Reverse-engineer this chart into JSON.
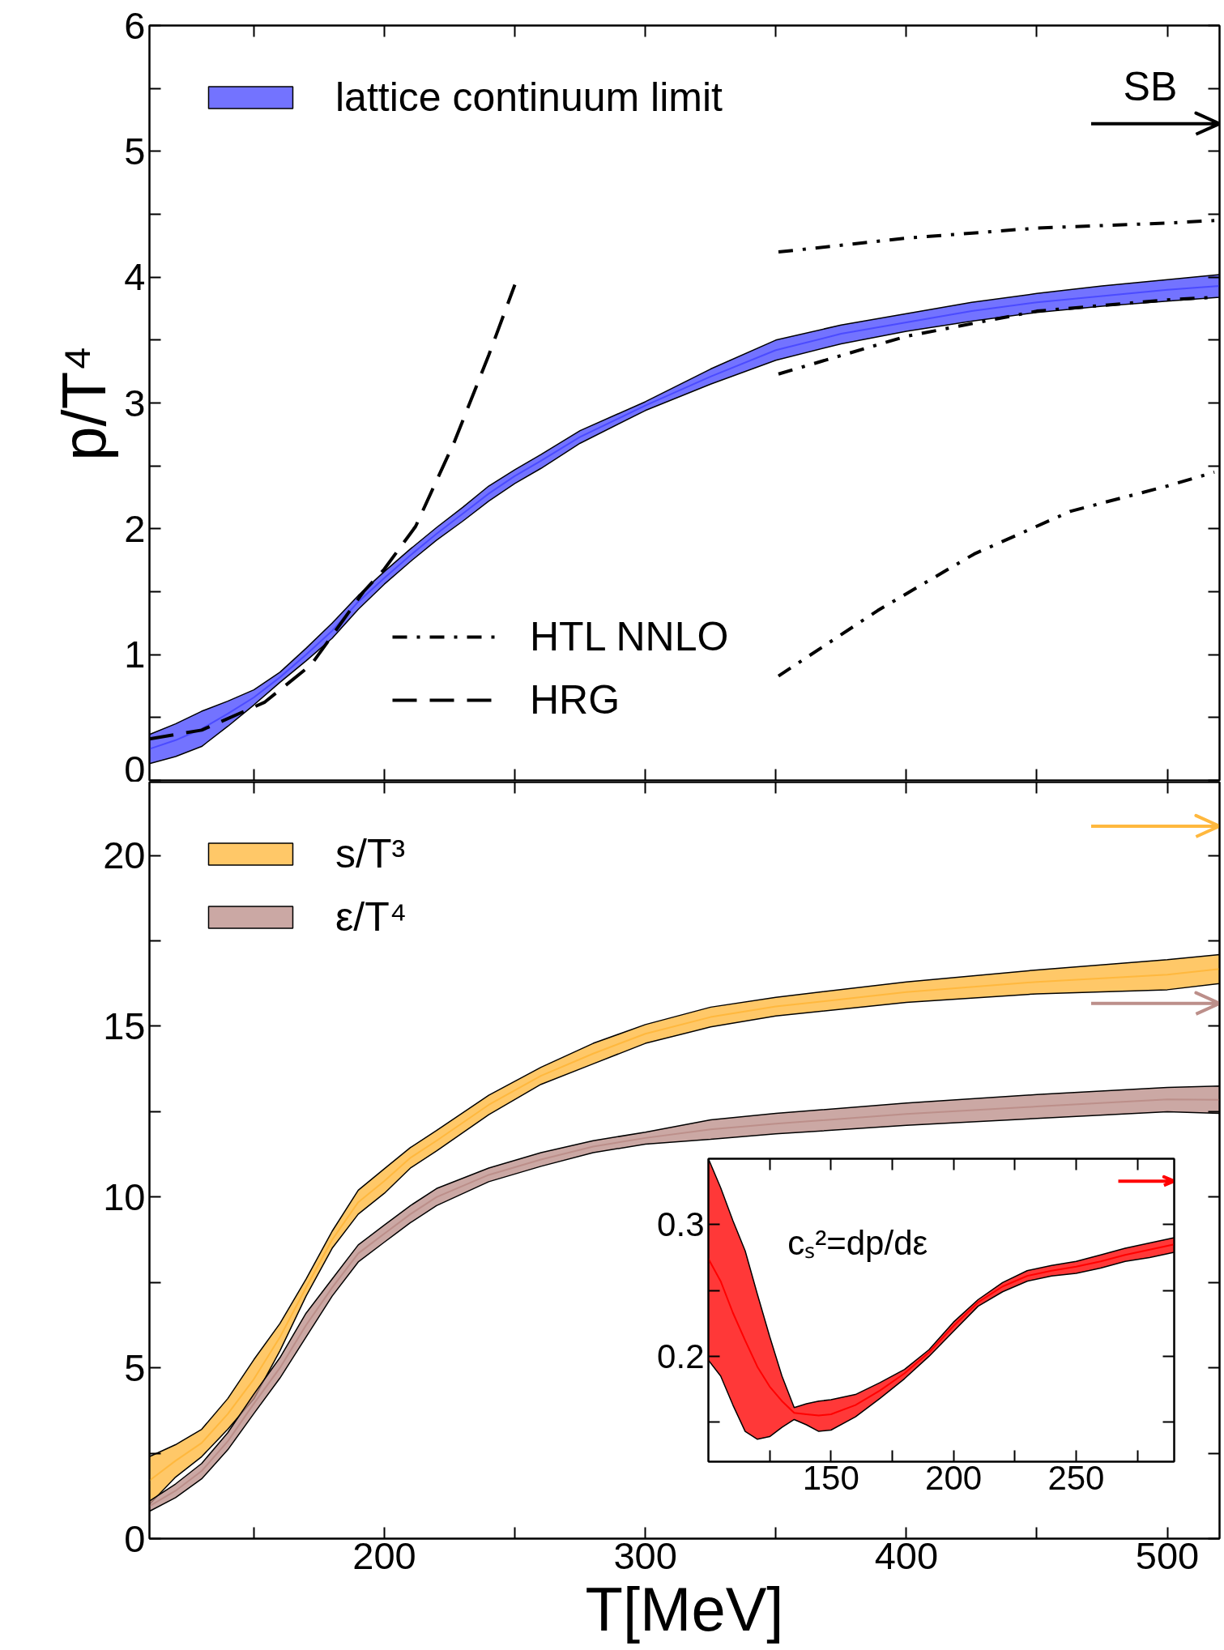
{
  "chart_data": [
    {
      "type": "line",
      "ylabel": "p/T⁴",
      "xlim": [
        110,
        520
      ],
      "ylim": [
        0,
        6
      ],
      "xticks": [
        {
          "value": 150,
          "label": null
        },
        200,
        {
          "value": 250,
          "label": null
        },
        300,
        {
          "value": 350,
          "label": null
        },
        400,
        {
          "value": 450,
          "label": null
        },
        500
      ],
      "yticks": [
        0,
        {
          "value": 0.5,
          "label": null
        },
        1,
        {
          "value": 1.5,
          "label": null
        },
        2,
        {
          "value": 2.5,
          "label": null
        },
        3,
        {
          "value": 3.5,
          "label": null
        },
        4,
        {
          "value": 4.5,
          "label": null
        },
        5,
        {
          "value": 5.5,
          "label": null
        },
        6
      ],
      "tick_labels": "y",
      "grid": false,
      "legend": "top left",
      "ref_lines": [
        {
          "axis": "y",
          "value": 5.22,
          "label": "SB",
          "color": "#000000"
        }
      ],
      "series": [
        {
          "name": "lattice continuum limit",
          "color": "#4b4bff",
          "x": [
            110,
            120,
            130,
            140,
            150,
            160,
            170,
            180,
            190,
            200,
            210,
            220,
            230,
            240,
            250,
            260,
            275,
            300,
            325,
            350,
            375,
            400,
            425,
            450,
            475,
            500,
            520
          ],
          "values": [
            0.25,
            0.32,
            0.41,
            0.53,
            0.66,
            0.82,
            1.0,
            1.19,
            1.42,
            1.61,
            1.79,
            1.96,
            2.12,
            2.28,
            2.42,
            2.54,
            2.73,
            2.98,
            3.21,
            3.42,
            3.55,
            3.64,
            3.73,
            3.8,
            3.85,
            3.9,
            3.93
          ],
          "lower": [
            0.133,
            0.19,
            0.27,
            0.43,
            0.6,
            0.78,
            0.95,
            1.13,
            1.36,
            1.56,
            1.74,
            1.91,
            2.06,
            2.22,
            2.36,
            2.48,
            2.68,
            2.94,
            3.15,
            3.34,
            3.47,
            3.57,
            3.65,
            3.72,
            3.77,
            3.81,
            3.84
          ],
          "upper": [
            0.365,
            0.45,
            0.55,
            0.63,
            0.72,
            0.86,
            1.05,
            1.25,
            1.47,
            1.66,
            1.84,
            2.01,
            2.17,
            2.34,
            2.47,
            2.59,
            2.78,
            3.01,
            3.27,
            3.5,
            3.62,
            3.71,
            3.8,
            3.87,
            3.93,
            3.98,
            4.02
          ]
        },
        {
          "name": "HTL NNLO",
          "line_style": "dashdot",
          "color": "#000000",
          "x": [
            351,
            400,
            450,
            500,
            518
          ],
          "values": [
            4.2,
            4.31,
            4.39,
            4.43,
            4.45
          ]
        },
        {
          "line_style": "dashdot",
          "color": "#000000",
          "x": [
            351,
            400,
            450,
            500,
            518
          ],
          "values": [
            3.23,
            3.53,
            3.73,
            3.82,
            3.84
          ]
        },
        {
          "line_style": "dashdot",
          "color": "#000000",
          "x": [
            351,
            389,
            426,
            463,
            500,
            518
          ],
          "values": [
            0.83,
            1.35,
            1.8,
            2.14,
            2.34,
            2.45
          ]
        },
        {
          "name": "HRG",
          "line_style": "dashed",
          "color": "#000000",
          "x": [
            110,
            130,
            154,
            172,
            192,
            200,
            212,
            227,
            240,
            250
          ],
          "values": [
            0.33,
            0.4,
            0.62,
            0.92,
            1.5,
            1.68,
            2.02,
            2.7,
            3.38,
            3.94
          ]
        }
      ]
    },
    {
      "type": "line",
      "xlabel": "T[MeV]",
      "xlim": [
        110,
        520
      ],
      "ylim": [
        0,
        22.15
      ],
      "xticks": [
        {
          "value": 150,
          "label": null
        },
        200,
        {
          "value": 250,
          "label": null
        },
        300,
        {
          "value": 350,
          "label": null
        },
        400,
        {
          "value": 450,
          "label": null
        },
        500
      ],
      "yticks": [
        0,
        {
          "value": 2.5,
          "label": null
        },
        5,
        {
          "value": 7.5,
          "label": null
        },
        10,
        {
          "value": 12.5,
          "label": null
        },
        15,
        {
          "value": 17.5,
          "label": null
        },
        20
      ],
      "grid": false,
      "legend": "top left",
      "ref_lines": [
        {
          "axis": "y",
          "value": 20.86,
          "color": "#ffb83e"
        },
        {
          "axis": "y",
          "value": 15.67,
          "color": "#bc8f8a"
        }
      ],
      "series": [
        {
          "name": "s/T³",
          "color": "#ffb83e",
          "x": [
            110,
            120,
            130,
            140,
            150,
            160,
            170,
            180,
            190,
            200,
            210,
            220,
            240,
            260,
            280,
            300,
            325,
            350,
            400,
            450,
            500,
            520
          ],
          "values": [
            1.7,
            2.28,
            2.8,
            3.65,
            4.67,
            5.9,
            7.35,
            8.75,
            9.85,
            10.47,
            11.15,
            11.65,
            12.7,
            13.55,
            14.2,
            14.78,
            15.27,
            15.58,
            16.0,
            16.3,
            16.51,
            16.68
          ],
          "lower": [
            1.0,
            1.8,
            2.4,
            3.2,
            4.09,
            5.5,
            7.1,
            8.5,
            9.5,
            10.11,
            10.85,
            11.35,
            12.41,
            13.3,
            13.9,
            14.5,
            14.98,
            15.3,
            15.7,
            15.95,
            16.07,
            16.25
          ],
          "upper": [
            2.4,
            2.75,
            3.2,
            4.1,
            5.24,
            6.3,
            7.6,
            9.0,
            10.2,
            10.83,
            11.45,
            11.95,
            12.98,
            13.8,
            14.5,
            15.05,
            15.56,
            15.85,
            16.3,
            16.65,
            16.95,
            17.1
          ]
        },
        {
          "name": "ε/T⁴",
          "color": "#bc8f8a",
          "x": [
            110,
            120,
            130,
            140,
            150,
            160,
            170,
            180,
            190,
            200,
            210,
            220,
            240,
            260,
            280,
            300,
            325,
            350,
            400,
            450,
            500,
            520
          ],
          "values": [
            0.95,
            1.4,
            1.98,
            2.85,
            3.95,
            5.0,
            6.25,
            7.35,
            8.35,
            8.93,
            9.5,
            10.0,
            10.65,
            11.1,
            11.48,
            11.73,
            11.98,
            12.15,
            12.43,
            12.65,
            12.86,
            12.85
          ],
          "lower": [
            0.8,
            1.2,
            1.75,
            2.6,
            3.66,
            4.7,
            5.9,
            7.1,
            8.1,
            8.68,
            9.25,
            9.75,
            10.45,
            10.9,
            11.3,
            11.55,
            11.69,
            11.85,
            12.1,
            12.3,
            12.5,
            12.45
          ],
          "upper": [
            1.1,
            1.6,
            2.2,
            3.1,
            4.23,
            5.3,
            6.6,
            7.6,
            8.6,
            9.18,
            9.75,
            10.25,
            10.85,
            11.3,
            11.65,
            11.9,
            12.26,
            12.45,
            12.75,
            13.0,
            13.21,
            13.25
          ]
        }
      ]
    },
    {
      "type": "line",
      "xlim": [
        100,
        290
      ],
      "ylim": [
        0.12,
        0.35
      ],
      "legend": false,
      "xticks": [
        {
          "value": 125,
          "label": null
        },
        150,
        {
          "value": 175,
          "label": null
        },
        200,
        {
          "value": 225,
          "label": null
        },
        250,
        {
          "value": 275,
          "label": null
        }
      ],
      "yticks": [
        {
          "value": 0.15,
          "label": null
        },
        0.2,
        {
          "value": 0.25,
          "label": null
        },
        0.3
      ],
      "grid": false,
      "ref_lines": [
        {
          "axis": "y",
          "value": 0.333,
          "color": "#ff0000"
        }
      ],
      "series": [
        {
          "name": "cₛ²=dp/dε",
          "color": "#ff0000",
          "x": [
            100,
            105,
            110,
            115,
            120,
            125,
            130,
            135,
            140,
            145,
            150,
            160,
            170,
            180,
            190,
            200,
            210,
            220,
            230,
            240,
            250,
            260,
            270,
            280,
            290
          ],
          "values": [
            0.274,
            0.257,
            0.233,
            0.212,
            0.192,
            0.177,
            0.166,
            0.157,
            0.156,
            0.155,
            0.156,
            0.163,
            0.174,
            0.187,
            0.203,
            0.223,
            0.241,
            0.253,
            0.261,
            0.265,
            0.268,
            0.272,
            0.277,
            0.281,
            0.285
          ],
          "lower": [
            0.197,
            0.185,
            0.163,
            0.143,
            0.137,
            0.139,
            0.146,
            0.152,
            0.148,
            0.143,
            0.144,
            0.154,
            0.168,
            0.183,
            0.2,
            0.219,
            0.238,
            0.249,
            0.257,
            0.261,
            0.263,
            0.267,
            0.272,
            0.275,
            0.279
          ],
          "upper": [
            0.35,
            0.328,
            0.303,
            0.28,
            0.247,
            0.215,
            0.185,
            0.161,
            0.164,
            0.166,
            0.167,
            0.171,
            0.18,
            0.19,
            0.205,
            0.226,
            0.243,
            0.256,
            0.265,
            0.269,
            0.272,
            0.277,
            0.282,
            0.286,
            0.29
          ]
        }
      ]
    }
  ]
}
